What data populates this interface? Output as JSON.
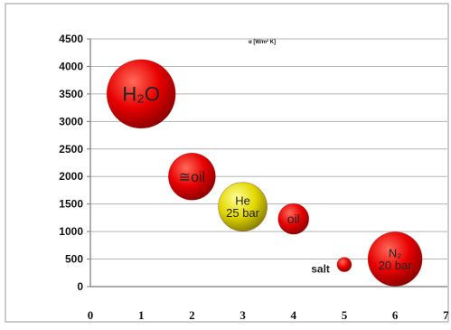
{
  "chart_data": {
    "type": "bubble",
    "title": "α [W/m² K]",
    "xlabel": "",
    "ylabel": "",
    "xlim": [
      0,
      7
    ],
    "ylim": [
      0,
      4500
    ],
    "xticks": [
      "0",
      "1",
      "2",
      "3",
      "4",
      "5",
      "6",
      "7"
    ],
    "yticks": [
      "0",
      "500",
      "1000",
      "1500",
      "2000",
      "2500",
      "3000",
      "3500",
      "4000",
      "4500"
    ],
    "grid": "horizontal",
    "points": [
      {
        "x": 1,
        "y": 3500,
        "size": 38,
        "color": "#e80000",
        "label": "H₂O",
        "label_position": "inside"
      },
      {
        "x": 2,
        "y": 2000,
        "size": 26,
        "color": "#e80000",
        "label": "≅oil",
        "label_position": "inside"
      },
      {
        "x": 3,
        "y": 1450,
        "size": 27,
        "color": "#e2d800",
        "label": "He\n25 bar",
        "label_position": "inside"
      },
      {
        "x": 4,
        "y": 1230,
        "size": 17,
        "color": "#e80000",
        "label": "oil",
        "label_position": "inside"
      },
      {
        "x": 5,
        "y": 400,
        "size": 8,
        "color": "#e80000",
        "label": "salt",
        "label_position": "left"
      },
      {
        "x": 6,
        "y": 500,
        "size": 30,
        "color": "#e80000",
        "label": "N₂\n20 bar",
        "label_position": "inside"
      }
    ]
  }
}
